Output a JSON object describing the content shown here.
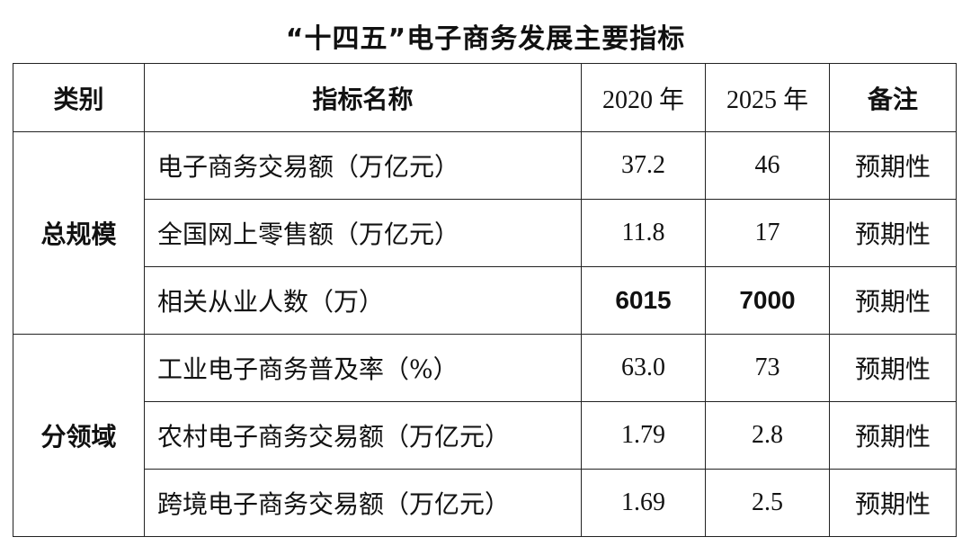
{
  "title": "“十四五”电子商务发展主要指标",
  "headers": {
    "category": "类别",
    "name": "指标名称",
    "y2020": "2020 年",
    "y2025": "2025 年",
    "note": "备注"
  },
  "groups": [
    {
      "category": "总规模",
      "rows": [
        {
          "name": "电子商务交易额（万亿元）",
          "v2020": "37.2",
          "v2025": "46",
          "note": "预期性"
        },
        {
          "name": "全国网上零售额（万亿元）",
          "v2020": "11.8",
          "v2025": "17",
          "note": "预期性"
        },
        {
          "name": "相关从业人数（万）",
          "v2020": "6015",
          "v2025": "7000",
          "note": "预期性"
        }
      ]
    },
    {
      "category": "分领域",
      "rows": [
        {
          "name": "工业电子商务普及率（%）",
          "v2020": "63.0",
          "v2025": "73",
          "note": "预期性"
        },
        {
          "name": "农村电子商务交易额（万亿元）",
          "v2020": "1.79",
          "v2025": "2.8",
          "note": "预期性"
        },
        {
          "name": "跨境电子商务交易额（万亿元）",
          "v2020": "1.69",
          "v2025": "2.5",
          "note": "预期性"
        }
      ]
    }
  ]
}
